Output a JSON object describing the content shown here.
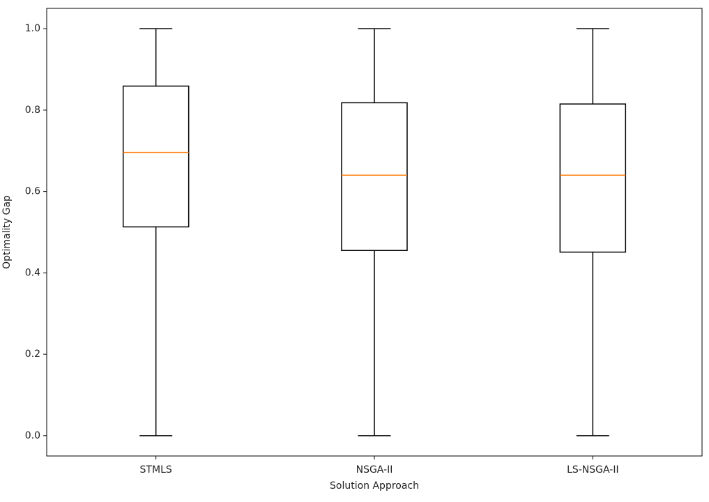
{
  "chart_data": {
    "type": "box",
    "x_label": "Solution Approach",
    "y_label": "Optimality Gap",
    "categories": [
      "STMLS",
      "NSGA-II",
      "LS-NSGA-II"
    ],
    "min": [
      0,
      0,
      0
    ],
    "q1": [
      0.513,
      0.455,
      0.451
    ],
    "median": [
      0.696,
      0.64,
      0.64
    ],
    "q3": [
      0.859,
      0.818,
      0.815
    ],
    "max": [
      1,
      1,
      1
    ],
    "box_color": "#000000",
    "median_color": "#ff7f0e",
    "ylim": [
      -0.05,
      1.05
    ],
    "yticks": [
      {
        "value": 0,
        "label": "0.0"
      },
      0.2,
      0.4,
      0.6,
      0.8,
      {
        "value": 1,
        "label": "1.0"
      }
    ]
  }
}
